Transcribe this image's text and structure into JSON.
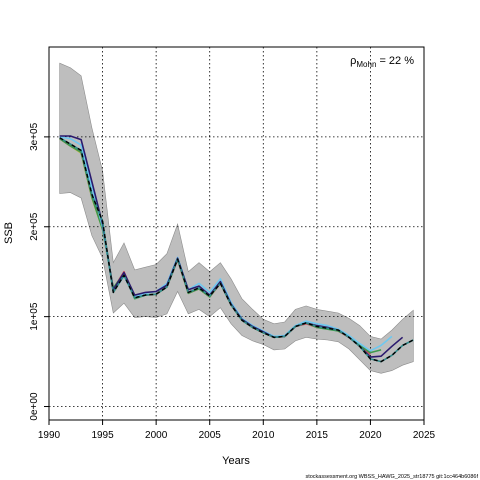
{
  "chart_data": {
    "type": "line",
    "xlabel": "Years",
    "ylabel": "SSB",
    "xlim": [
      1990,
      2025
    ],
    "ylim": [
      -15000,
      400000
    ],
    "x_ticks": [
      1990,
      1995,
      2000,
      2005,
      2010,
      2015,
      2020,
      2025
    ],
    "y_ticks": [
      0,
      100000,
      200000,
      300000
    ],
    "y_tick_labels": [
      "0e+00",
      "1e+05",
      "2e+05",
      "3e+05"
    ],
    "grid": true,
    "annotation": {
      "symbol": "ρ",
      "subscript": "Mohn",
      "text": " = 22 %",
      "placement": "top-right"
    },
    "source_text": "stockassessment.org WBSS_HAWG_2025_str18775 git:1cc464b6086f",
    "confidence_band": {
      "x": [
        1991,
        1992,
        1993,
        1994,
        1995,
        1996,
        1997,
        1998,
        1999,
        2000,
        2001,
        2002,
        2003,
        2004,
        2005,
        2006,
        2007,
        2008,
        2009,
        2010,
        2011,
        2012,
        2013,
        2014,
        2015,
        2016,
        2017,
        2018,
        2019,
        2020,
        2021,
        2022,
        2023,
        2024
      ],
      "upper": [
        382000,
        377000,
        368000,
        310000,
        262000,
        160000,
        182000,
        152000,
        155000,
        158000,
        170000,
        203000,
        150000,
        160000,
        150000,
        160000,
        142000,
        120000,
        108000,
        97000,
        92000,
        94000,
        108000,
        112000,
        108000,
        106000,
        104000,
        98000,
        90000,
        78000,
        75000,
        85000,
        97000,
        107000
      ],
      "lower": [
        237000,
        238000,
        232000,
        190000,
        165000,
        104000,
        115000,
        99000,
        100000,
        99000,
        103000,
        128000,
        103000,
        108000,
        100000,
        110000,
        92000,
        79000,
        73000,
        69000,
        63000,
        64000,
        73000,
        77000,
        75000,
        74000,
        72000,
        64000,
        52000,
        40000,
        37000,
        40000,
        46000,
        50000
      ],
      "color": "#bebebe"
    },
    "series": [
      {
        "color": "#000000",
        "dashed": true,
        "x": [
          1991,
          1992,
          1993,
          1994,
          1995,
          1996,
          1997,
          1998,
          1999,
          2000,
          2001,
          2002,
          2003,
          2004,
          2005,
          2006,
          2007,
          2008,
          2009,
          2010,
          2011,
          2012,
          2013,
          2014,
          2015,
          2016,
          2017,
          2018,
          2019,
          2020,
          2021,
          2022,
          2023,
          2024
        ],
        "values": [
          299000,
          292000,
          285000,
          236000,
          206000,
          127000,
          146000,
          121000,
          124000,
          125000,
          133000,
          164000,
          127000,
          132000,
          123000,
          137000,
          113000,
          96000,
          88000,
          82000,
          77000,
          78000,
          89000,
          93000,
          89000,
          87000,
          85000,
          77000,
          67000,
          53000,
          50000,
          57000,
          68000,
          74000
        ]
      },
      {
        "color": "#2f8b8b",
        "dashed": false,
        "x": [
          1991,
          1992,
          1993,
          1994,
          1995,
          1996,
          1997,
          1998,
          1999,
          2000,
          2001,
          2002,
          2003,
          2004,
          2005,
          2006,
          2007,
          2008,
          2009,
          2010,
          2011,
          2012,
          2013,
          2014,
          2015,
          2016,
          2017,
          2018,
          2019,
          2020,
          2021,
          2022,
          2023,
          2024
        ],
        "values": [
          299000,
          292000,
          285000,
          236000,
          206000,
          127000,
          146000,
          121000,
          124000,
          125000,
          133000,
          164000,
          127000,
          132000,
          123000,
          137000,
          113000,
          96000,
          88000,
          82000,
          77000,
          78000,
          89000,
          93000,
          89000,
          87000,
          85000,
          77000,
          67000,
          53000,
          50000,
          57000,
          68000,
          74000
        ]
      },
      {
        "color": "#2b1a6e",
        "dashed": false,
        "x": [
          1991,
          1992,
          1993,
          1994,
          1995,
          1996,
          1997,
          1998,
          1999,
          2000,
          2001,
          2002,
          2003,
          2004,
          2005,
          2006,
          2007,
          2008,
          2009,
          2010,
          2011,
          2012,
          2013,
          2014,
          2015,
          2016,
          2017,
          2018,
          2019,
          2020,
          2021,
          2022,
          2023
        ],
        "values": [
          301000,
          301000,
          297000,
          250000,
          203000,
          130000,
          149000,
          124000,
          127000,
          128000,
          135000,
          165000,
          130000,
          134000,
          124000,
          139000,
          114000,
          97000,
          89000,
          83000,
          77000,
          78000,
          89000,
          93000,
          90000,
          88000,
          85000,
          77000,
          67000,
          55000,
          56000,
          67000,
          77000
        ]
      },
      {
        "color": "#6ec8f0",
        "dashed": false,
        "x": [
          1991,
          1992,
          1993,
          1994,
          1995,
          1996,
          1997,
          1998,
          1999,
          2000,
          2001,
          2002,
          2003,
          2004,
          2005,
          2006,
          2007,
          2008,
          2009,
          2010,
          2011,
          2012,
          2013,
          2014,
          2015,
          2016,
          2017,
          2018,
          2019,
          2020,
          2021,
          2022
        ],
        "values": [
          300000,
          298000,
          291000,
          244000,
          200000,
          128000,
          145000,
          122000,
          126000,
          128000,
          137000,
          166000,
          130000,
          137000,
          127000,
          142000,
          116000,
          98000,
          90000,
          84000,
          78000,
          79000,
          90000,
          95000,
          92000,
          90000,
          86000,
          79000,
          70000,
          62000,
          68000,
          78000
        ]
      },
      {
        "color": "#3e9a4e",
        "dashed": false,
        "x": [
          1991,
          1992,
          1993,
          1994,
          1995,
          1996,
          1997,
          1998,
          1999,
          2000,
          2001,
          2002,
          2003,
          2004,
          2005,
          2006,
          2007,
          2008,
          2009,
          2010,
          2011,
          2012,
          2013,
          2014,
          2015,
          2016,
          2017,
          2018,
          2019,
          2020,
          2021
        ],
        "values": [
          298000,
          290000,
          283000,
          233000,
          197000,
          132000,
          148000,
          120000,
          124000,
          125000,
          133000,
          164000,
          126000,
          131000,
          122000,
          138000,
          114000,
          96000,
          88000,
          82000,
          77000,
          78000,
          89000,
          93000,
          88000,
          86000,
          84000,
          78000,
          68000,
          60000,
          63000
        ]
      },
      {
        "color": "#c8505a",
        "dashed": false,
        "x": [
          1991,
          1992,
          1993,
          1994,
          1995,
          1996,
          1997,
          1998,
          1999,
          2000,
          2001,
          2002,
          2003,
          2004,
          2005,
          2006,
          2007,
          2008,
          2009,
          2010,
          2011,
          2012,
          2013,
          2014,
          2015,
          2016,
          2017,
          2018,
          2019,
          2020
        ],
        "values": [
          298000,
          290000,
          283000,
          233000,
          198000,
          131000,
          150000,
          122000,
          124000,
          125000,
          133000,
          163000,
          126000,
          131000,
          122000,
          137000,
          113000,
          96000,
          88000,
          82000,
          77000,
          78000,
          89000,
          92000,
          88000,
          87000,
          84000,
          77000,
          68000,
          58000
        ]
      },
      {
        "color": "#b6c13a",
        "dashed": false,
        "x": [
          1991,
          1992,
          1993,
          1994,
          1995,
          1996,
          1997,
          1998,
          1999,
          2000,
          2001,
          2002,
          2003,
          2004,
          2005,
          2006,
          2007,
          2008,
          2009,
          2010,
          2011,
          2012,
          2013,
          2014,
          2015,
          2016,
          2017,
          2018,
          2019
        ],
        "values": [
          298000,
          290000,
          282000,
          232000,
          197000,
          130000,
          147000,
          121000,
          124000,
          125000,
          133000,
          164000,
          126000,
          131000,
          122000,
          137000,
          113000,
          96000,
          88000,
          82000,
          77000,
          78000,
          89000,
          93000,
          88000,
          87000,
          84000,
          77000,
          67000
        ]
      }
    ]
  }
}
